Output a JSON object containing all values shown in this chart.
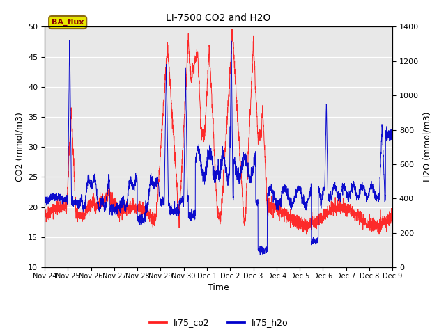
{
  "title": "LI-7500 CO2 and H2O",
  "xlabel": "Time",
  "ylabel_left": "CO2 (mmol/m3)",
  "ylabel_right": "H2O (mmol/m3)",
  "ylim_left": [
    10,
    50
  ],
  "ylim_right": [
    0,
    1400
  ],
  "xtick_labels": [
    "Nov 24",
    "Nov 25",
    "Nov 26",
    "Nov 27",
    "Nov 28",
    "Nov 29",
    "Nov 30",
    "Dec 1",
    "Dec 2",
    "Dec 3",
    "Dec 4",
    "Dec 5",
    "Dec 6",
    "Dec 7",
    "Dec 8",
    "Dec 9"
  ],
  "yticks_left": [
    10,
    15,
    20,
    25,
    30,
    35,
    40,
    45,
    50
  ],
  "yticks_right": [
    0,
    200,
    400,
    600,
    800,
    1000,
    1200,
    1400
  ],
  "co2_color": "#ff2020",
  "h2o_color": "#0000cc",
  "bg_color": "#e8e8e8",
  "annotation_text": "BA_flux",
  "annotation_bg": "#e8e800",
  "annotation_border": "#8b6914",
  "legend_co2": "li75_co2",
  "legend_h2o": "li75_h2o",
  "n_points": 3000,
  "n_days": 15
}
